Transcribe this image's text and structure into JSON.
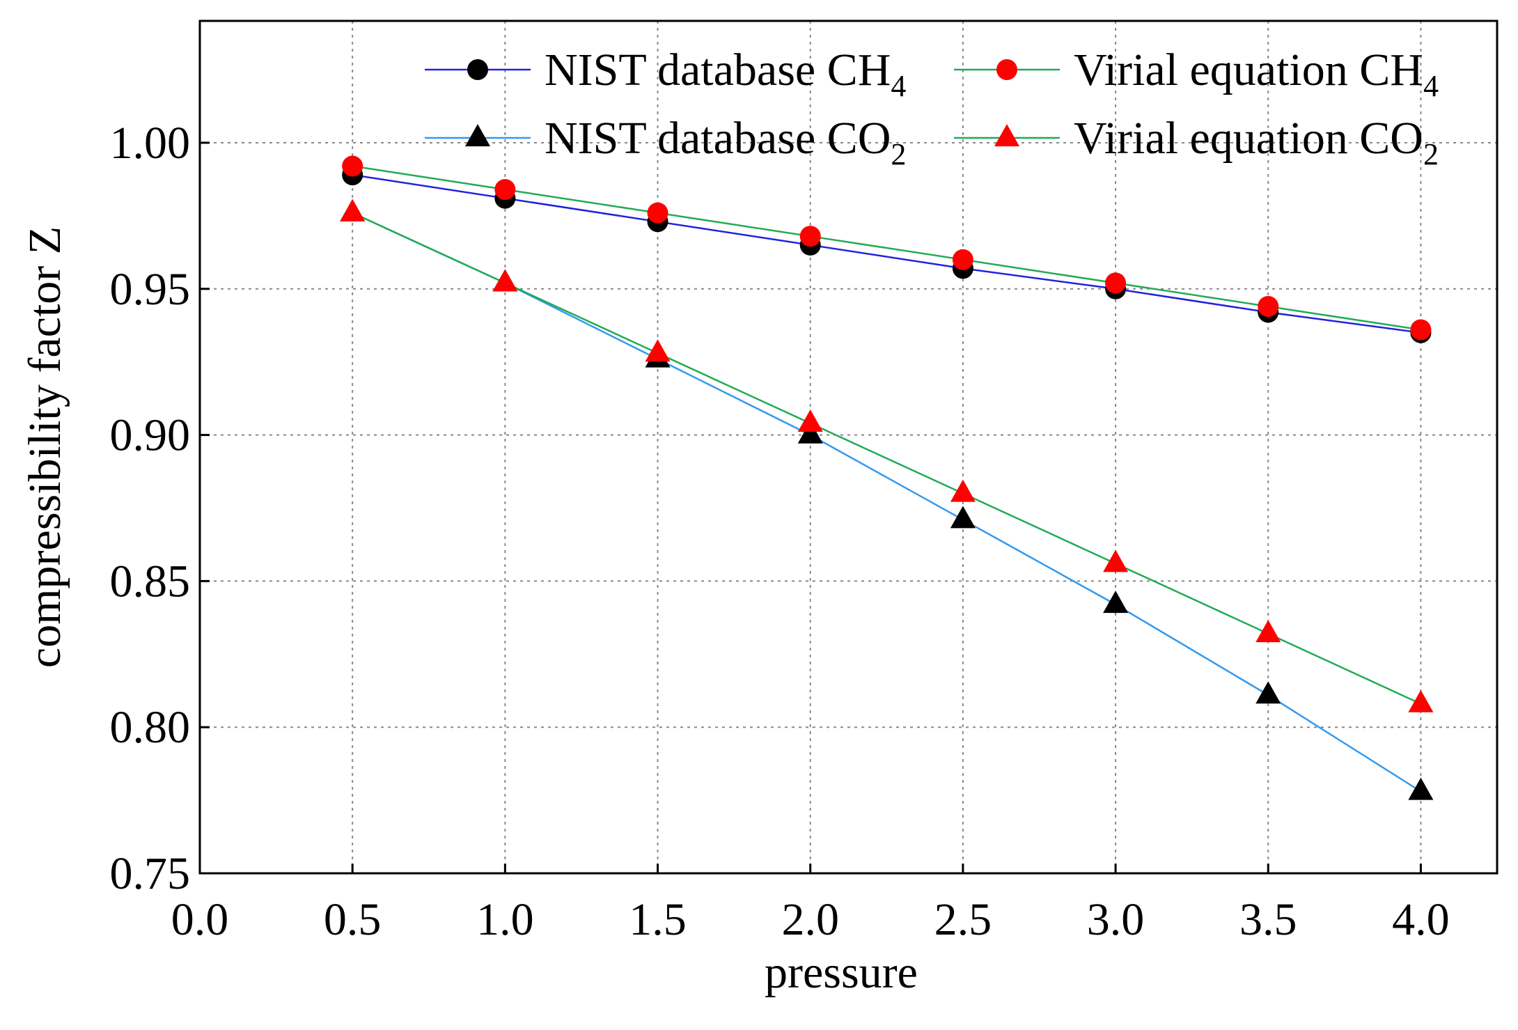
{
  "chart_data": {
    "type": "line",
    "title": "",
    "xlabel": "pressure",
    "ylabel": "compressibility factor Z",
    "xlim": [
      0.0,
      4.25
    ],
    "ylim": [
      0.75,
      1.0417
    ],
    "xticks": [
      0.0,
      0.5,
      1.0,
      1.5,
      2.0,
      2.5,
      3.0,
      3.5,
      4.0
    ],
    "xtick_labels": [
      "0.0",
      "0.5",
      "1.0",
      "1.5",
      "2.0",
      "2.5",
      "3.0",
      "3.5",
      "4.0"
    ],
    "yticks": [
      0.75,
      0.8,
      0.85,
      0.9,
      0.95,
      1.0
    ],
    "ytick_labels": [
      "0.75",
      "0.80",
      "0.85",
      "0.90",
      "0.95",
      "1.00"
    ],
    "grid": true,
    "legend_position": "top-right",
    "x": [
      0.5,
      1.0,
      1.5,
      2.0,
      2.5,
      3.0,
      3.5,
      4.0
    ],
    "series": [
      {
        "name": "NIST database CH",
        "subscript": "4",
        "line_color": "#2222dd",
        "marker": "circle",
        "marker_color": "#000000",
        "values": [
          0.989,
          0.981,
          0.973,
          0.965,
          0.957,
          0.95,
          0.942,
          0.935
        ]
      },
      {
        "name": "Virial equation CH",
        "subscript": "4",
        "line_color": "#22aa55",
        "marker": "circle",
        "marker_color": "#ff0000",
        "values": [
          0.992,
          0.984,
          0.976,
          0.968,
          0.96,
          0.952,
          0.944,
          0.936
        ]
      },
      {
        "name": "NIST database CO",
        "subscript": "2",
        "line_color": "#3399ee",
        "marker": "triangle",
        "marker_color": "#000000",
        "values": [
          0.976,
          0.952,
          0.926,
          0.9,
          0.871,
          0.842,
          0.811,
          0.778
        ]
      },
      {
        "name": "Virial equation CO",
        "subscript": "2",
        "line_color": "#22aa55",
        "marker": "triangle",
        "marker_color": "#ff0000",
        "values": [
          0.976,
          0.952,
          0.928,
          0.904,
          0.88,
          0.856,
          0.832,
          0.808
        ]
      }
    ]
  }
}
